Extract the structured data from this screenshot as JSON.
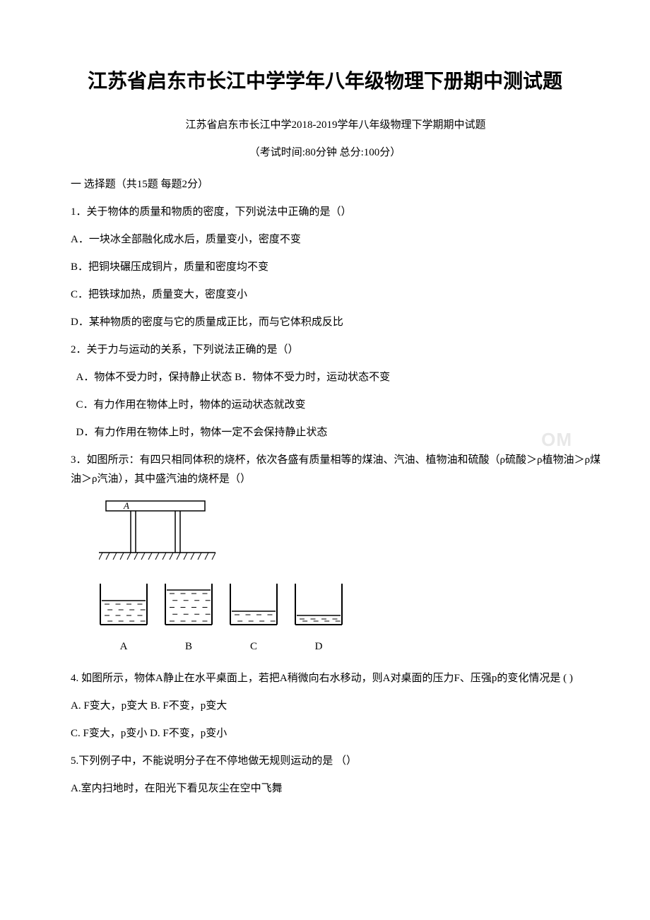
{
  "title": "江苏省启东市长江中学学年八年级物理下册期中测试题",
  "subtitle": "江苏省启东市长江中学2018-2019学年八年级物理下学期期中试题",
  "exam_info": "（考试时间:80分钟 总分:100分）",
  "section1_header": "一 选择题（共15题 每题2分）",
  "q1": {
    "stem": "1．关于物体的质量和物质的密度，下列说法中正确的是（）",
    "A": "A．一块冰全部融化成水后，质量变小，密度不变",
    "B": "B．把铜块碾压成铜片，质量和密度均不变",
    "C": "C．把铁球加热，质量变大，密度变小",
    "D": "D．某种物质的密度与它的质量成正比，而与它体积成反比"
  },
  "q2": {
    "stem": "2．关于力与运动的关系，下列说法正确的是（）",
    "A": " A．物体不受力时，保持静止状态 B．物体不受力时，运动状态不变",
    "C": " C．有力作用在物体上时，物体的运动状态就改变",
    "D": " D．有力作用在物体上时，物体一定不会保持静止状态"
  },
  "q3": {
    "stem": "3．如图所示：有四只相同体积的烧杯，依次各盛有质量相等的煤油、汽油、植物油和硫酸（ρ硫酸＞ρ植物油＞ρ煤油＞ρ汽油），其中盛汽油的烧杯是（）"
  },
  "table_svg": {
    "label": "A",
    "stroke": "#000000"
  },
  "beakers": {
    "labels": [
      "A",
      "B",
      "C",
      "D"
    ],
    "fill_fractions": [
      0.6,
      0.85,
      0.35,
      0.25
    ],
    "stroke": "#000000"
  },
  "q4": {
    "stem": "4. 如图所示，物体A静止在水平桌面上，若把A稍微向右水移动，则A对桌面的压力F、压强p的变化情况是 (   )",
    "AB": "A. F变大，p变大 B. F不变，p变大",
    "CD": "C. F变大，p变小 D. F不变，p变小"
  },
  "q5": {
    "stem": "5.下列例子中，不能说明分子在不停地做无规则运动的是 （）",
    "A": "A.室内扫地时，在阳光下看见灰尘在空中飞舞"
  },
  "watermark": "OM"
}
